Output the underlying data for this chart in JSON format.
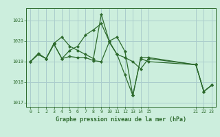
{
  "title": "Graphe pression niveau de la mer (hPa)",
  "bg_color": "#cceedd",
  "grid_color": "#aacccc",
  "line_color": "#2d6a2d",
  "xlim": [
    -0.5,
    23.5
  ],
  "ylim": [
    1016.8,
    1021.6
  ],
  "yticks": [
    1017,
    1018,
    1019,
    1020,
    1021
  ],
  "xticks": [
    0,
    1,
    2,
    3,
    4,
    5,
    6,
    7,
    8,
    9,
    10,
    11,
    12,
    13,
    14,
    15,
    21,
    22,
    23
  ],
  "series": [
    {
      "x": [
        0,
        1,
        2,
        3,
        4,
        5,
        6,
        7,
        8,
        9,
        10,
        11,
        12,
        13,
        14,
        15,
        21,
        22,
        23
      ],
      "y": [
        1019.0,
        1019.4,
        1019.15,
        1019.9,
        1020.2,
        1019.75,
        1019.55,
        1019.35,
        1019.15,
        1021.3,
        1020.0,
        1020.2,
        1019.5,
        1017.35,
        1019.2,
        1019.2,
        1018.85,
        1017.55,
        1017.85
      ]
    },
    {
      "x": [
        0,
        1,
        2,
        3,
        4,
        5,
        6,
        7,
        8,
        9,
        10,
        11,
        12,
        13,
        14,
        15,
        21,
        22,
        23
      ],
      "y": [
        1019.0,
        1019.35,
        1019.15,
        1019.85,
        1019.15,
        1019.25,
        1019.2,
        1019.2,
        1019.05,
        1019.0,
        1019.95,
        1019.35,
        1019.2,
        1019.0,
        1018.65,
        1019.15,
        1018.85,
        1017.55,
        1017.85
      ]
    },
    {
      "x": [
        0,
        1,
        2,
        3,
        4,
        5,
        6,
        7,
        8,
        9,
        10,
        11,
        12,
        13,
        14,
        15,
        21,
        22,
        23
      ],
      "y": [
        1019.0,
        1019.35,
        1019.15,
        1019.85,
        1019.15,
        1019.55,
        1019.75,
        1020.3,
        1020.55,
        1020.85,
        1020.0,
        1019.35,
        1018.35,
        1017.35,
        1019.15,
        1019.0,
        1018.85,
        1017.55,
        1017.85
      ]
    }
  ]
}
